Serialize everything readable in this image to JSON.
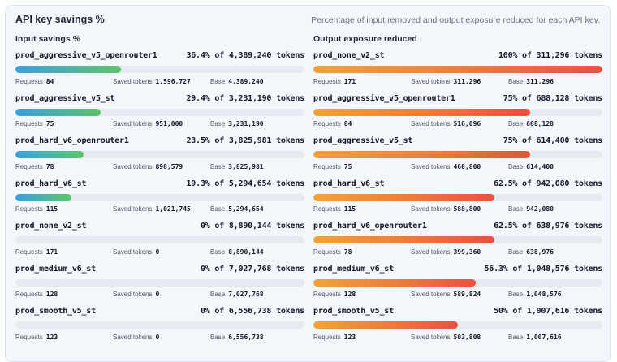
{
  "title": "API key savings %",
  "subtitle": "Percentage of input removed and output exposure reduced for each API key.",
  "labels": {
    "requests": "Requests",
    "saved_tokens": "Saved tokens",
    "base": "Base"
  },
  "colors": {
    "input_bar_start": "#3b9fe0",
    "input_bar_end": "#5cc46a",
    "output_bar_start": "#f2a23a",
    "output_bar_end": "#e8513f",
    "track": "#e5e9f0"
  },
  "input": {
    "title": "Input savings %",
    "rows": [
      {
        "name": "prod_aggressive_v5_openrouter1",
        "pct": 36.4,
        "value": "36.4% of 4,389,240 tokens",
        "requests": "84",
        "saved": "1,596,727",
        "base": "4,389,240"
      },
      {
        "name": "prod_aggressive_v5_st",
        "pct": 29.4,
        "value": "29.4% of 3,231,190 tokens",
        "requests": "75",
        "saved": "951,000",
        "base": "3,231,190"
      },
      {
        "name": "prod_hard_v6_openrouter1",
        "pct": 23.5,
        "value": "23.5% of 3,825,981 tokens",
        "requests": "78",
        "saved": "898,579",
        "base": "3,825,981"
      },
      {
        "name": "prod_hard_v6_st",
        "pct": 19.3,
        "value": "19.3% of 5,294,654 tokens",
        "requests": "115",
        "saved": "1,021,745",
        "base": "5,294,654"
      },
      {
        "name": "prod_none_v2_st",
        "pct": 0,
        "value": "0% of 8,890,144 tokens",
        "requests": "171",
        "saved": "0",
        "base": "8,890,144"
      },
      {
        "name": "prod_medium_v6_st",
        "pct": 0,
        "value": "0% of 7,027,768 tokens",
        "requests": "128",
        "saved": "0",
        "base": "7,027,768"
      },
      {
        "name": "prod_smooth_v5_st",
        "pct": 0,
        "value": "0% of 6,556,738 tokens",
        "requests": "123",
        "saved": "0",
        "base": "6,556,738"
      }
    ]
  },
  "output": {
    "title": "Output exposure reduced",
    "rows": [
      {
        "name": "prod_none_v2_st",
        "pct": 100,
        "value": "100% of 311,296 tokens",
        "requests": "171",
        "saved": "311,296",
        "base": "311,296"
      },
      {
        "name": "prod_aggressive_v5_openrouter1",
        "pct": 75,
        "value": "75% of 688,128 tokens",
        "requests": "84",
        "saved": "516,096",
        "base": "688,128"
      },
      {
        "name": "prod_aggressive_v5_st",
        "pct": 75,
        "value": "75% of 614,400 tokens",
        "requests": "75",
        "saved": "460,800",
        "base": "614,400"
      },
      {
        "name": "prod_hard_v6_st",
        "pct": 62.5,
        "value": "62.5% of 942,080 tokens",
        "requests": "115",
        "saved": "588,800",
        "base": "942,080"
      },
      {
        "name": "prod_hard_v6_openrouter1",
        "pct": 62.5,
        "value": "62.5% of 638,976 tokens",
        "requests": "78",
        "saved": "399,360",
        "base": "638,976"
      },
      {
        "name": "prod_medium_v6_st",
        "pct": 56.3,
        "value": "56.3% of 1,048,576 tokens",
        "requests": "128",
        "saved": "589,824",
        "base": "1,048,576"
      },
      {
        "name": "prod_smooth_v5_st",
        "pct": 50,
        "value": "50% of 1,007,616 tokens",
        "requests": "123",
        "saved": "503,808",
        "base": "1,007,616"
      }
    ]
  }
}
